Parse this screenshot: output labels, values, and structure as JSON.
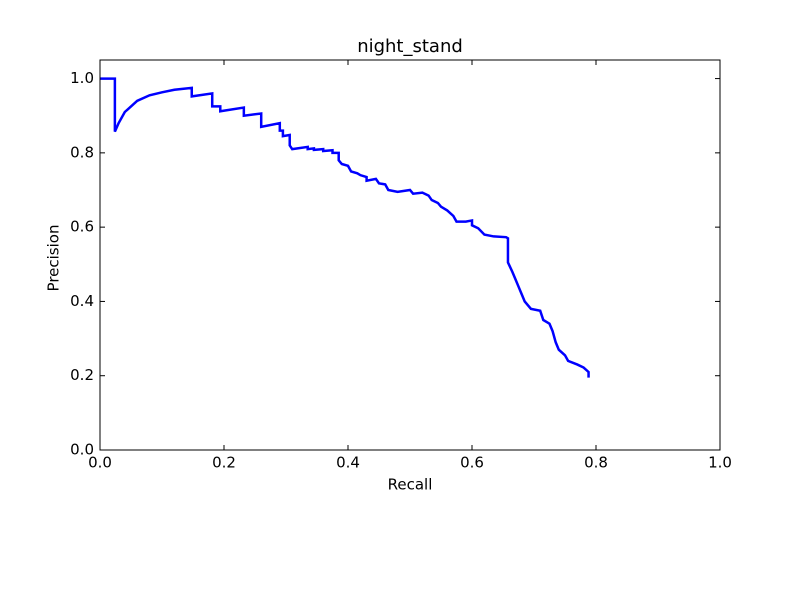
{
  "chart_data": {
    "type": "line",
    "title": "night_stand",
    "x_label": "Recall",
    "y_label": "Precision",
    "color": "#0000ff",
    "x": [
      0,
      0.024,
      0.024,
      0.03,
      0.04,
      0.06,
      0.08,
      0.1,
      0.12,
      0.148,
      0.148,
      0.181,
      0.181,
      0.194,
      0.194,
      0.232,
      0.232,
      0.26,
      0.26,
      0.29,
      0.29,
      0.295,
      0.295,
      0.306,
      0.306,
      0.31,
      0.335,
      0.335,
      0.345,
      0.345,
      0.36,
      0.36,
      0.375,
      0.375,
      0.385,
      0.385,
      0.39,
      0.4,
      0.405,
      0.415,
      0.42,
      0.43,
      0.43,
      0.445,
      0.45,
      0.46,
      0.465,
      0.48,
      0.5,
      0.505,
      0.52,
      0.53,
      0.535,
      0.545,
      0.55,
      0.56,
      0.57,
      0.575,
      0.59,
      0.6,
      0.6,
      0.61,
      0.62,
      0.635,
      0.655,
      0.658,
      0.658,
      0.665,
      0.67,
      0.675,
      0.68,
      0.685,
      0.695,
      0.71,
      0.715,
      0.725,
      0.73,
      0.735,
      0.74,
      0.75,
      0.755,
      0.77,
      0.78,
      0.788,
      0.788
    ],
    "values": [
      1.0,
      1.0,
      0.857,
      0.88,
      0.91,
      0.94,
      0.955,
      0.963,
      0.97,
      0.975,
      0.952,
      0.96,
      0.925,
      0.925,
      0.912,
      0.922,
      0.9,
      0.906,
      0.87,
      0.88,
      0.86,
      0.86,
      0.845,
      0.848,
      0.82,
      0.81,
      0.816,
      0.81,
      0.812,
      0.808,
      0.81,
      0.805,
      0.807,
      0.8,
      0.8,
      0.78,
      0.77,
      0.765,
      0.75,
      0.745,
      0.74,
      0.735,
      0.725,
      0.73,
      0.718,
      0.715,
      0.7,
      0.695,
      0.7,
      0.69,
      0.693,
      0.685,
      0.673,
      0.665,
      0.655,
      0.645,
      0.63,
      0.615,
      0.615,
      0.618,
      0.605,
      0.597,
      0.58,
      0.575,
      0.573,
      0.57,
      0.505,
      0.48,
      0.46,
      0.44,
      0.42,
      0.4,
      0.38,
      0.375,
      0.35,
      0.34,
      0.32,
      0.29,
      0.27,
      0.255,
      0.24,
      0.23,
      0.222,
      0.21,
      0.195
    ],
    "xlim": [
      0,
      1
    ],
    "ylim": [
      0,
      1.05
    ],
    "xticks": [
      {
        "value": 0,
        "label": "0.0"
      },
      0.2,
      0.4,
      0.6,
      0.8,
      {
        "value": 1,
        "label": "1.0"
      }
    ],
    "yticks": [
      {
        "value": 0,
        "label": "0.0"
      },
      0.2,
      0.4,
      0.6,
      0.8,
      {
        "value": 1,
        "label": "1.0"
      }
    ]
  }
}
